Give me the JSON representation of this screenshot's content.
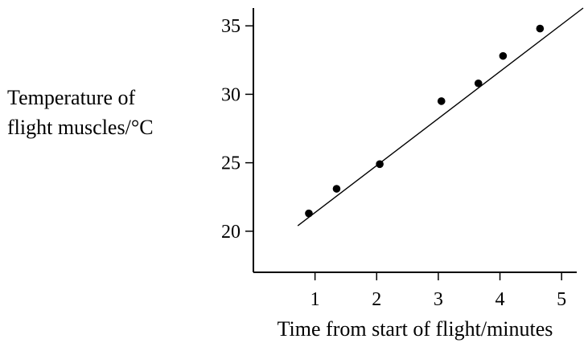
{
  "chart_data": {
    "type": "scatter",
    "xlabel": "Time from start of flight/minutes",
    "ylabel": [
      "Temperature of",
      "flight muscles/°C"
    ],
    "xticks": [
      1,
      2,
      3,
      4,
      5
    ],
    "yticks": [
      20,
      25,
      30,
      35
    ],
    "xlim": [
      0,
      5.35
    ],
    "ylim": [
      17,
      36.3
    ],
    "grid": false,
    "points": [
      {
        "x": 0.9,
        "y": 21.3
      },
      {
        "x": 1.35,
        "y": 23.1
      },
      {
        "x": 2.05,
        "y": 24.9
      },
      {
        "x": 3.05,
        "y": 29.5
      },
      {
        "x": 3.65,
        "y": 30.8
      },
      {
        "x": 4.05,
        "y": 32.8
      },
      {
        "x": 4.65,
        "y": 34.8
      }
    ],
    "trend_line": {
      "x1": 0.72,
      "y1": 20.4,
      "x2": 5.35,
      "y2": 36.3
    }
  }
}
